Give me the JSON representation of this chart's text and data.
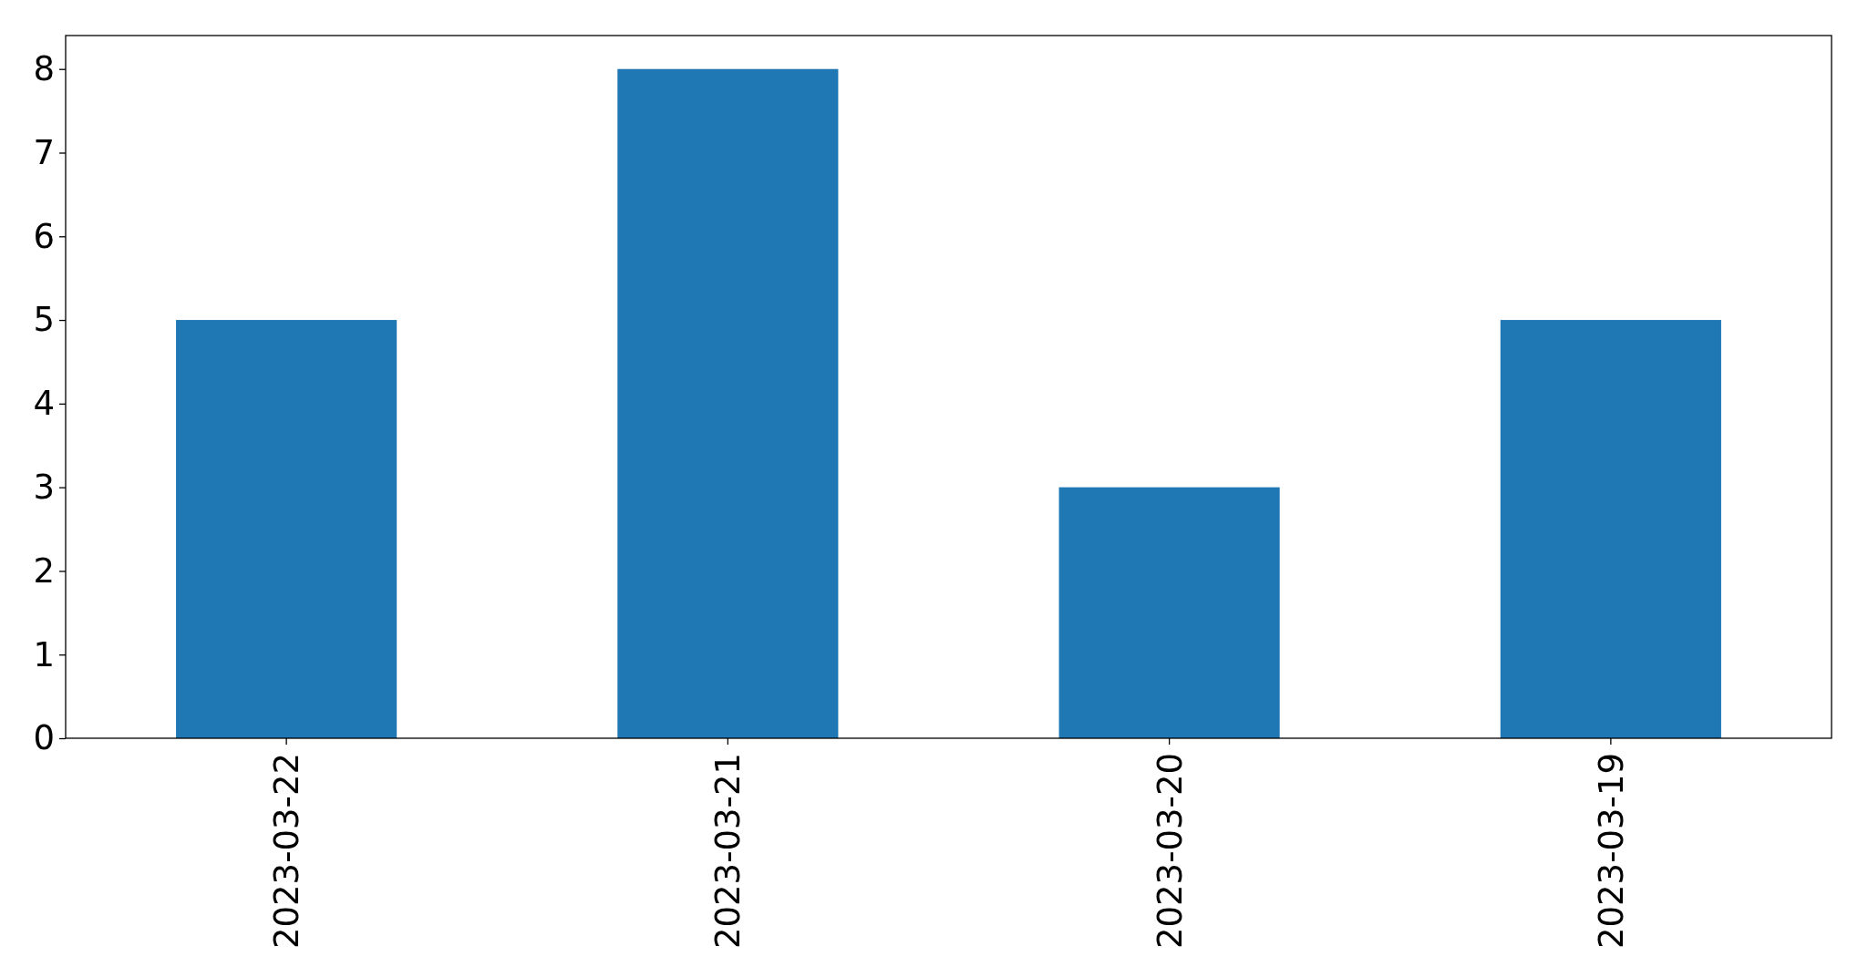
{
  "chart_data": {
    "type": "bar",
    "categories": [
      "2023-03-22",
      "2023-03-21",
      "2023-03-20",
      "2023-03-19"
    ],
    "values": [
      5,
      8,
      3,
      5
    ],
    "color": "#1f77b4",
    "ylim": [
      0,
      8.4
    ],
    "yticks": [
      0,
      1,
      2,
      3,
      4,
      5,
      6,
      7,
      8
    ],
    "grid": false
  }
}
